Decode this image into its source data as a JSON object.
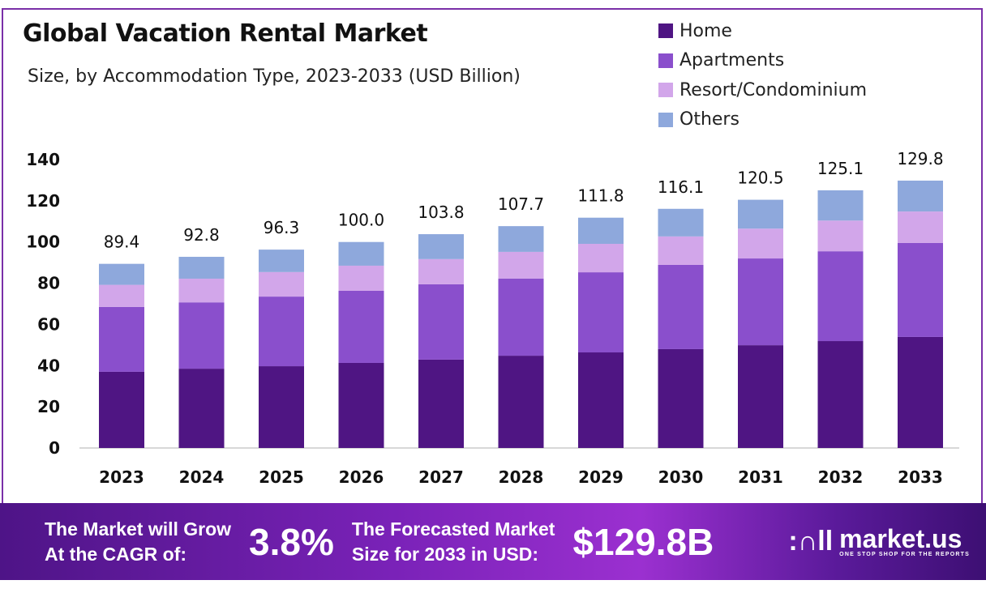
{
  "header": {
    "title": "Global Vacation Rental Market",
    "subtitle": "Size, by Accommodation Type, 2023-2033 (USD Billion)"
  },
  "chart_data": {
    "type": "bar",
    "stacked": true,
    "title": "Global Vacation Rental Market",
    "subtitle": "Size, by Accommodation Type, 2023-2033 (USD Billion)",
    "categories": [
      "2023",
      "2024",
      "2025",
      "2026",
      "2027",
      "2028",
      "2029",
      "2030",
      "2031",
      "2032",
      "2033"
    ],
    "series": [
      {
        "name": "Home",
        "color": "#4f1583",
        "values": [
          37.0,
          38.5,
          39.7,
          41.3,
          42.9,
          44.8,
          46.4,
          48.0,
          49.9,
          51.9,
          53.9
        ]
      },
      {
        "name": "Apartments",
        "color": "#8a4fcc",
        "values": [
          31.5,
          32.2,
          33.8,
          35.0,
          36.6,
          37.4,
          38.9,
          40.9,
          42.1,
          43.6,
          45.6
        ]
      },
      {
        "name": "Resort/Condominium",
        "color": "#d2a6ea",
        "values": [
          10.7,
          11.5,
          11.9,
          12.2,
          12.2,
          13.0,
          13.8,
          13.8,
          14.5,
          14.9,
          15.3
        ]
      },
      {
        "name": "Others",
        "color": "#8ea8dc",
        "values": [
          10.2,
          10.6,
          10.9,
          11.5,
          12.1,
          12.5,
          12.7,
          13.4,
          14.0,
          14.7,
          15.0
        ]
      }
    ],
    "totals": [
      "89.4",
      "92.8",
      "96.3",
      "100.0",
      "103.8",
      "107.7",
      "111.8",
      "116.1",
      "120.5",
      "125.1",
      "129.8"
    ],
    "yticks": [
      "0",
      "20",
      "40",
      "60",
      "80",
      "100",
      "120",
      "140"
    ],
    "ylim": [
      0,
      140
    ],
    "grid": false,
    "legend": "top-right",
    "xlabel": "",
    "ylabel": ""
  },
  "banner": {
    "cagr_label_1": "The Market will Grow",
    "cagr_label_2": "At the CAGR of:",
    "cagr_value": "3.8%",
    "forecast_label_1": "The Forecasted Market",
    "forecast_label_2": "Size for 2033 in USD:",
    "forecast_value": "$129.8B",
    "logo_name": "market.us",
    "logo_tagline": "ONE STOP SHOP FOR THE REPORTS"
  }
}
